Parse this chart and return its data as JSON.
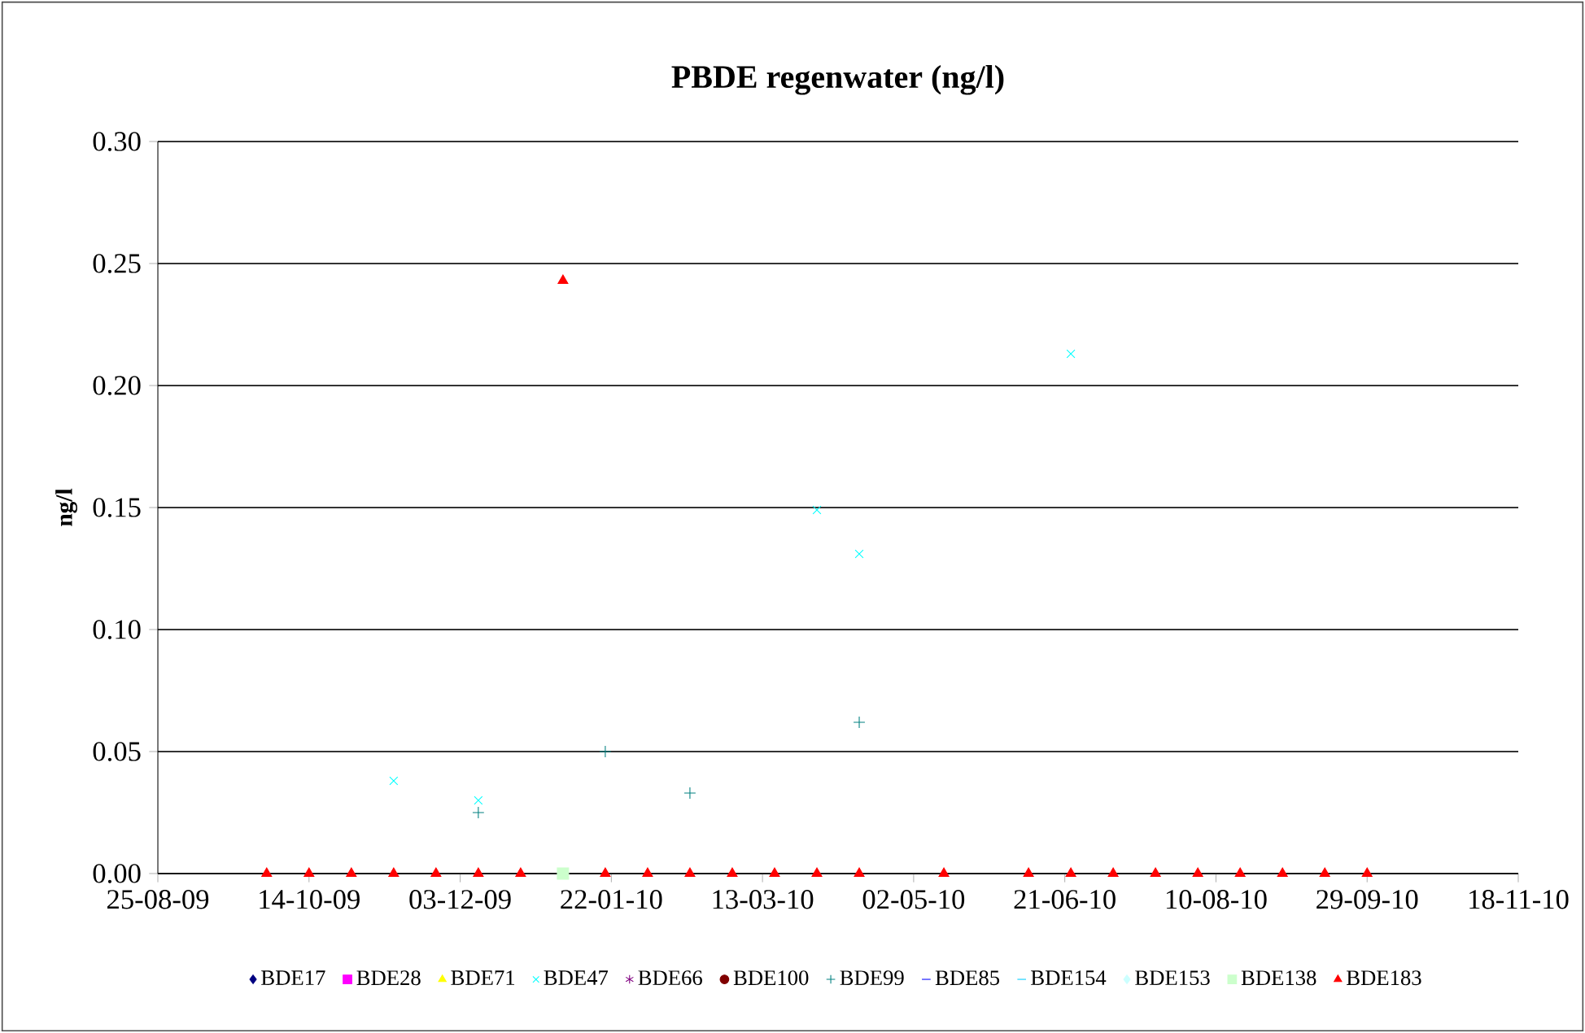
{
  "chart_data": {
    "type": "scatter",
    "title": "PBDE regenwater (ng/l)",
    "ylabel": "ng/l",
    "x": [
      "2009-09-30",
      "2009-10-14",
      "2009-10-28",
      "2009-11-11",
      "2009-11-25",
      "2009-12-09",
      "2009-12-23",
      "2010-01-06",
      "2010-01-20",
      "2010-02-03",
      "2010-02-17",
      "2010-03-03",
      "2010-03-17",
      "2010-03-31",
      "2010-04-14",
      "2010-05-12",
      "2010-06-09",
      "2010-06-23",
      "2010-07-07",
      "2010-07-21",
      "2010-08-04",
      "2010-08-18",
      "2010-09-01",
      "2010-09-15",
      "2010-09-29"
    ],
    "series": [
      {
        "name": "BDE17",
        "color": "#000080",
        "marker": "diamond",
        "values": [
          null,
          null,
          null,
          null,
          null,
          null,
          null,
          null,
          null,
          null,
          null,
          null,
          null,
          null,
          null,
          null,
          null,
          null,
          null,
          null,
          null,
          null,
          null,
          null,
          null
        ]
      },
      {
        "name": "BDE28",
        "color": "#ff00ff",
        "marker": "square",
        "values": [
          null,
          null,
          null,
          null,
          null,
          null,
          null,
          null,
          null,
          null,
          null,
          null,
          null,
          null,
          null,
          null,
          null,
          null,
          null,
          null,
          null,
          null,
          null,
          null,
          null
        ]
      },
      {
        "name": "BDE71",
        "color": "#ffff00",
        "marker": "triangle",
        "values": [
          null,
          null,
          null,
          null,
          null,
          null,
          null,
          null,
          null,
          null,
          null,
          null,
          null,
          null,
          null,
          null,
          null,
          null,
          null,
          null,
          null,
          null,
          null,
          null,
          null
        ]
      },
      {
        "name": "BDE47",
        "color": "#00ffff",
        "marker": "cross",
        "values": [
          null,
          null,
          null,
          0.038,
          null,
          0.03,
          null,
          null,
          null,
          null,
          null,
          null,
          null,
          0.149,
          0.131,
          null,
          null,
          0.213,
          null,
          null,
          null,
          null,
          null,
          null,
          null
        ]
      },
      {
        "name": "BDE66",
        "color": "#800080",
        "marker": "star",
        "values": [
          null,
          null,
          null,
          null,
          null,
          null,
          null,
          null,
          null,
          null,
          null,
          null,
          null,
          null,
          null,
          null,
          null,
          null,
          null,
          null,
          null,
          null,
          null,
          null,
          null
        ]
      },
      {
        "name": "BDE100",
        "color": "#800000",
        "marker": "circle",
        "values": [
          null,
          null,
          null,
          null,
          null,
          null,
          null,
          null,
          null,
          null,
          null,
          null,
          null,
          null,
          null,
          null,
          null,
          null,
          null,
          null,
          null,
          null,
          null,
          null,
          null
        ]
      },
      {
        "name": "BDE99",
        "color": "#008080",
        "marker": "plus",
        "values": [
          null,
          null,
          null,
          null,
          null,
          0.025,
          null,
          null,
          0.05,
          null,
          0.033,
          null,
          null,
          null,
          0.062,
          null,
          null,
          null,
          null,
          null,
          null,
          null,
          null,
          null,
          null
        ]
      },
      {
        "name": "BDE85",
        "color": "#0000ff",
        "marker": "dash",
        "values": [
          null,
          null,
          null,
          null,
          null,
          null,
          null,
          null,
          null,
          null,
          null,
          null,
          null,
          null,
          null,
          null,
          null,
          null,
          null,
          null,
          null,
          null,
          null,
          null,
          null
        ]
      },
      {
        "name": "BDE154",
        "color": "#00ccff",
        "marker": "dash",
        "values": [
          null,
          null,
          null,
          null,
          null,
          null,
          null,
          null,
          null,
          null,
          null,
          null,
          null,
          null,
          null,
          null,
          null,
          null,
          null,
          null,
          null,
          null,
          null,
          null,
          null
        ]
      },
      {
        "name": "BDE153",
        "color": "#ccffff",
        "marker": "diamond",
        "values": [
          null,
          null,
          null,
          null,
          null,
          null,
          null,
          null,
          null,
          null,
          null,
          null,
          null,
          null,
          null,
          null,
          null,
          null,
          null,
          null,
          null,
          null,
          null,
          null,
          null
        ]
      },
      {
        "name": "BDE138",
        "color": "#ccffcc",
        "marker": "square",
        "values": [
          null,
          null,
          null,
          null,
          null,
          null,
          null,
          0,
          null,
          null,
          null,
          null,
          null,
          null,
          null,
          null,
          null,
          null,
          null,
          null,
          null,
          null,
          null,
          null,
          null
        ]
      },
      {
        "name": "BDE183",
        "color": "#ff0000",
        "marker": "triangle",
        "values": [
          0,
          0,
          0,
          0,
          0,
          0,
          0,
          0.243,
          0,
          0,
          0,
          0,
          0,
          0,
          0,
          0,
          0,
          0,
          0,
          0,
          0,
          0,
          0,
          0,
          0
        ]
      }
    ],
    "xlim": [
      "2009-08-25",
      "2010-11-18"
    ],
    "xticks": [
      {
        "value": "2009-08-25",
        "label": "25-08-09"
      },
      {
        "value": "2009-10-14",
        "label": "14-10-09"
      },
      {
        "value": "2009-12-03",
        "label": "03-12-09"
      },
      {
        "value": "2010-01-22",
        "label": "22-01-10"
      },
      {
        "value": "2010-03-13",
        "label": "13-03-10"
      },
      {
        "value": "2010-05-02",
        "label": "02-05-10"
      },
      {
        "value": "2010-06-21",
        "label": "21-06-10"
      },
      {
        "value": "2010-08-10",
        "label": "10-08-10"
      },
      {
        "value": "2010-09-29",
        "label": "29-09-10"
      },
      {
        "value": "2010-11-18",
        "label": "18-11-10"
      }
    ],
    "ylim": [
      0,
      0.3
    ],
    "yticks": [
      {
        "value": 0,
        "label": "0.00"
      },
      {
        "value": 0.05,
        "label": "0.05"
      },
      {
        "value": 0.1,
        "label": "0.10"
      },
      {
        "value": 0.15,
        "label": "0.15"
      },
      {
        "value": 0.2,
        "label": "0.20"
      },
      {
        "value": 0.25,
        "label": "0.25"
      },
      {
        "value": 0.3,
        "label": "0.30"
      }
    ],
    "grid": "y",
    "legend": "bottom"
  }
}
